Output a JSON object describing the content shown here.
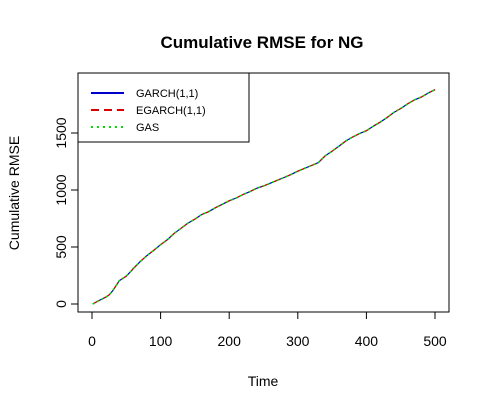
{
  "chart_data": {
    "type": "line",
    "title": "Cumulative RMSE for NG",
    "xlabel": "Time",
    "ylabel": "Cumulative RMSE",
    "xlim": [
      0,
      500
    ],
    "ylim": [
      0,
      1880
    ],
    "xticks": [
      0,
      100,
      200,
      300,
      400,
      500
    ],
    "yticks": [
      0,
      500,
      1000,
      1500
    ],
    "grid": false,
    "legend_position": "top-left",
    "x": [
      1,
      10,
      20,
      25,
      30,
      35,
      40,
      45,
      50,
      55,
      60,
      70,
      80,
      90,
      100,
      110,
      120,
      130,
      140,
      150,
      160,
      170,
      180,
      190,
      200,
      210,
      220,
      230,
      240,
      250,
      260,
      270,
      280,
      290,
      300,
      310,
      320,
      330,
      340,
      350,
      360,
      370,
      380,
      390,
      400,
      410,
      420,
      430,
      440,
      450,
      460,
      470,
      480,
      490,
      500
    ],
    "series": [
      {
        "name": "GARCH(1,1)",
        "color": "#0000cc",
        "line_style": "solid",
        "values": [
          0,
          30,
          60,
          80,
          115,
          160,
          205,
          225,
          245,
          275,
          310,
          370,
          425,
          470,
          520,
          565,
          620,
          665,
          710,
          745,
          785,
          810,
          845,
          875,
          905,
          930,
          960,
          985,
          1015,
          1035,
          1060,
          1085,
          1110,
          1135,
          1165,
          1190,
          1215,
          1240,
          1300,
          1340,
          1385,
          1430,
          1465,
          1495,
          1520,
          1560,
          1595,
          1635,
          1680,
          1715,
          1755,
          1790,
          1815,
          1850,
          1880
        ]
      },
      {
        "name": "EGARCH(1,1)",
        "color": "#dd0000",
        "line_style": "dashed",
        "values": [
          0,
          30,
          60,
          80,
          115,
          160,
          205,
          225,
          245,
          275,
          310,
          370,
          425,
          470,
          520,
          565,
          620,
          665,
          710,
          745,
          785,
          810,
          845,
          875,
          905,
          930,
          960,
          985,
          1015,
          1035,
          1060,
          1085,
          1110,
          1135,
          1165,
          1190,
          1215,
          1240,
          1300,
          1340,
          1385,
          1430,
          1465,
          1495,
          1520,
          1560,
          1595,
          1635,
          1680,
          1715,
          1755,
          1790,
          1815,
          1850,
          1880
        ]
      },
      {
        "name": "GAS",
        "color": "#00dd00",
        "line_style": "dotted",
        "values": [
          0,
          30,
          60,
          80,
          115,
          160,
          205,
          225,
          245,
          275,
          310,
          370,
          425,
          470,
          520,
          565,
          620,
          665,
          710,
          745,
          785,
          810,
          845,
          875,
          905,
          930,
          960,
          985,
          1015,
          1035,
          1060,
          1085,
          1110,
          1135,
          1165,
          1190,
          1215,
          1240,
          1300,
          1340,
          1385,
          1430,
          1465,
          1495,
          1520,
          1560,
          1595,
          1635,
          1680,
          1715,
          1755,
          1790,
          1815,
          1850,
          1880
        ]
      }
    ]
  }
}
